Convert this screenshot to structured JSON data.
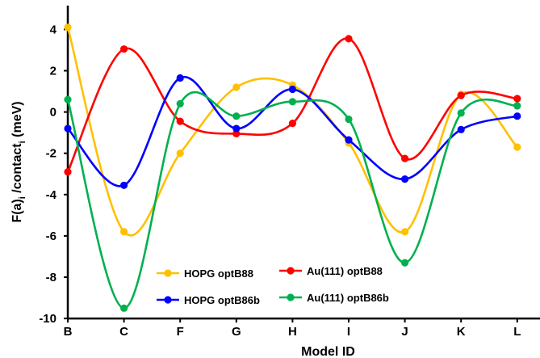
{
  "chart_data": {
    "type": "line",
    "categories": [
      "B",
      "C",
      "F",
      "G",
      "H",
      "I",
      "J",
      "K",
      "L"
    ],
    "xlabel": "Model ID",
    "ylabel_main": "F(a)",
    "ylabel_sub1": "i",
    "ylabel_mid": " /contact",
    "ylabel_sub2": "i",
    "ylabel_tail": " (meV)",
    "ylim": [
      -10,
      5
    ],
    "yticks": [
      4,
      2,
      0,
      -2,
      -4,
      -6,
      -8,
      -10
    ],
    "ytick_labels": [
      "4",
      "2",
      "0",
      "-2",
      "-4",
      "-6",
      "-8",
      "-10"
    ],
    "grid": false,
    "legend_position": "bottom-center",
    "series": [
      {
        "name": "HOPG optB88",
        "color": "#FFC000",
        "values": [
          4.1,
          -5.8,
          -2.0,
          1.2,
          1.3,
          -1.5,
          -5.8,
          0.85,
          -1.7
        ]
      },
      {
        "name": "Au(111) optB88",
        "color": "#FF0000",
        "values": [
          -2.9,
          3.05,
          -0.45,
          -1.05,
          -0.55,
          3.55,
          -2.25,
          0.8,
          0.65
        ]
      },
      {
        "name": "HOPG optB86b",
        "color": "#0000FF",
        "values": [
          -0.8,
          -3.55,
          1.65,
          -0.8,
          1.1,
          -1.35,
          -3.25,
          -0.85,
          -0.2
        ]
      },
      {
        "name": "Au(111) optB86b",
        "color": "#00B050",
        "values": [
          0.6,
          -9.5,
          0.4,
          -0.2,
          0.5,
          -0.35,
          -7.3,
          -0.05,
          0.3
        ]
      }
    ]
  }
}
